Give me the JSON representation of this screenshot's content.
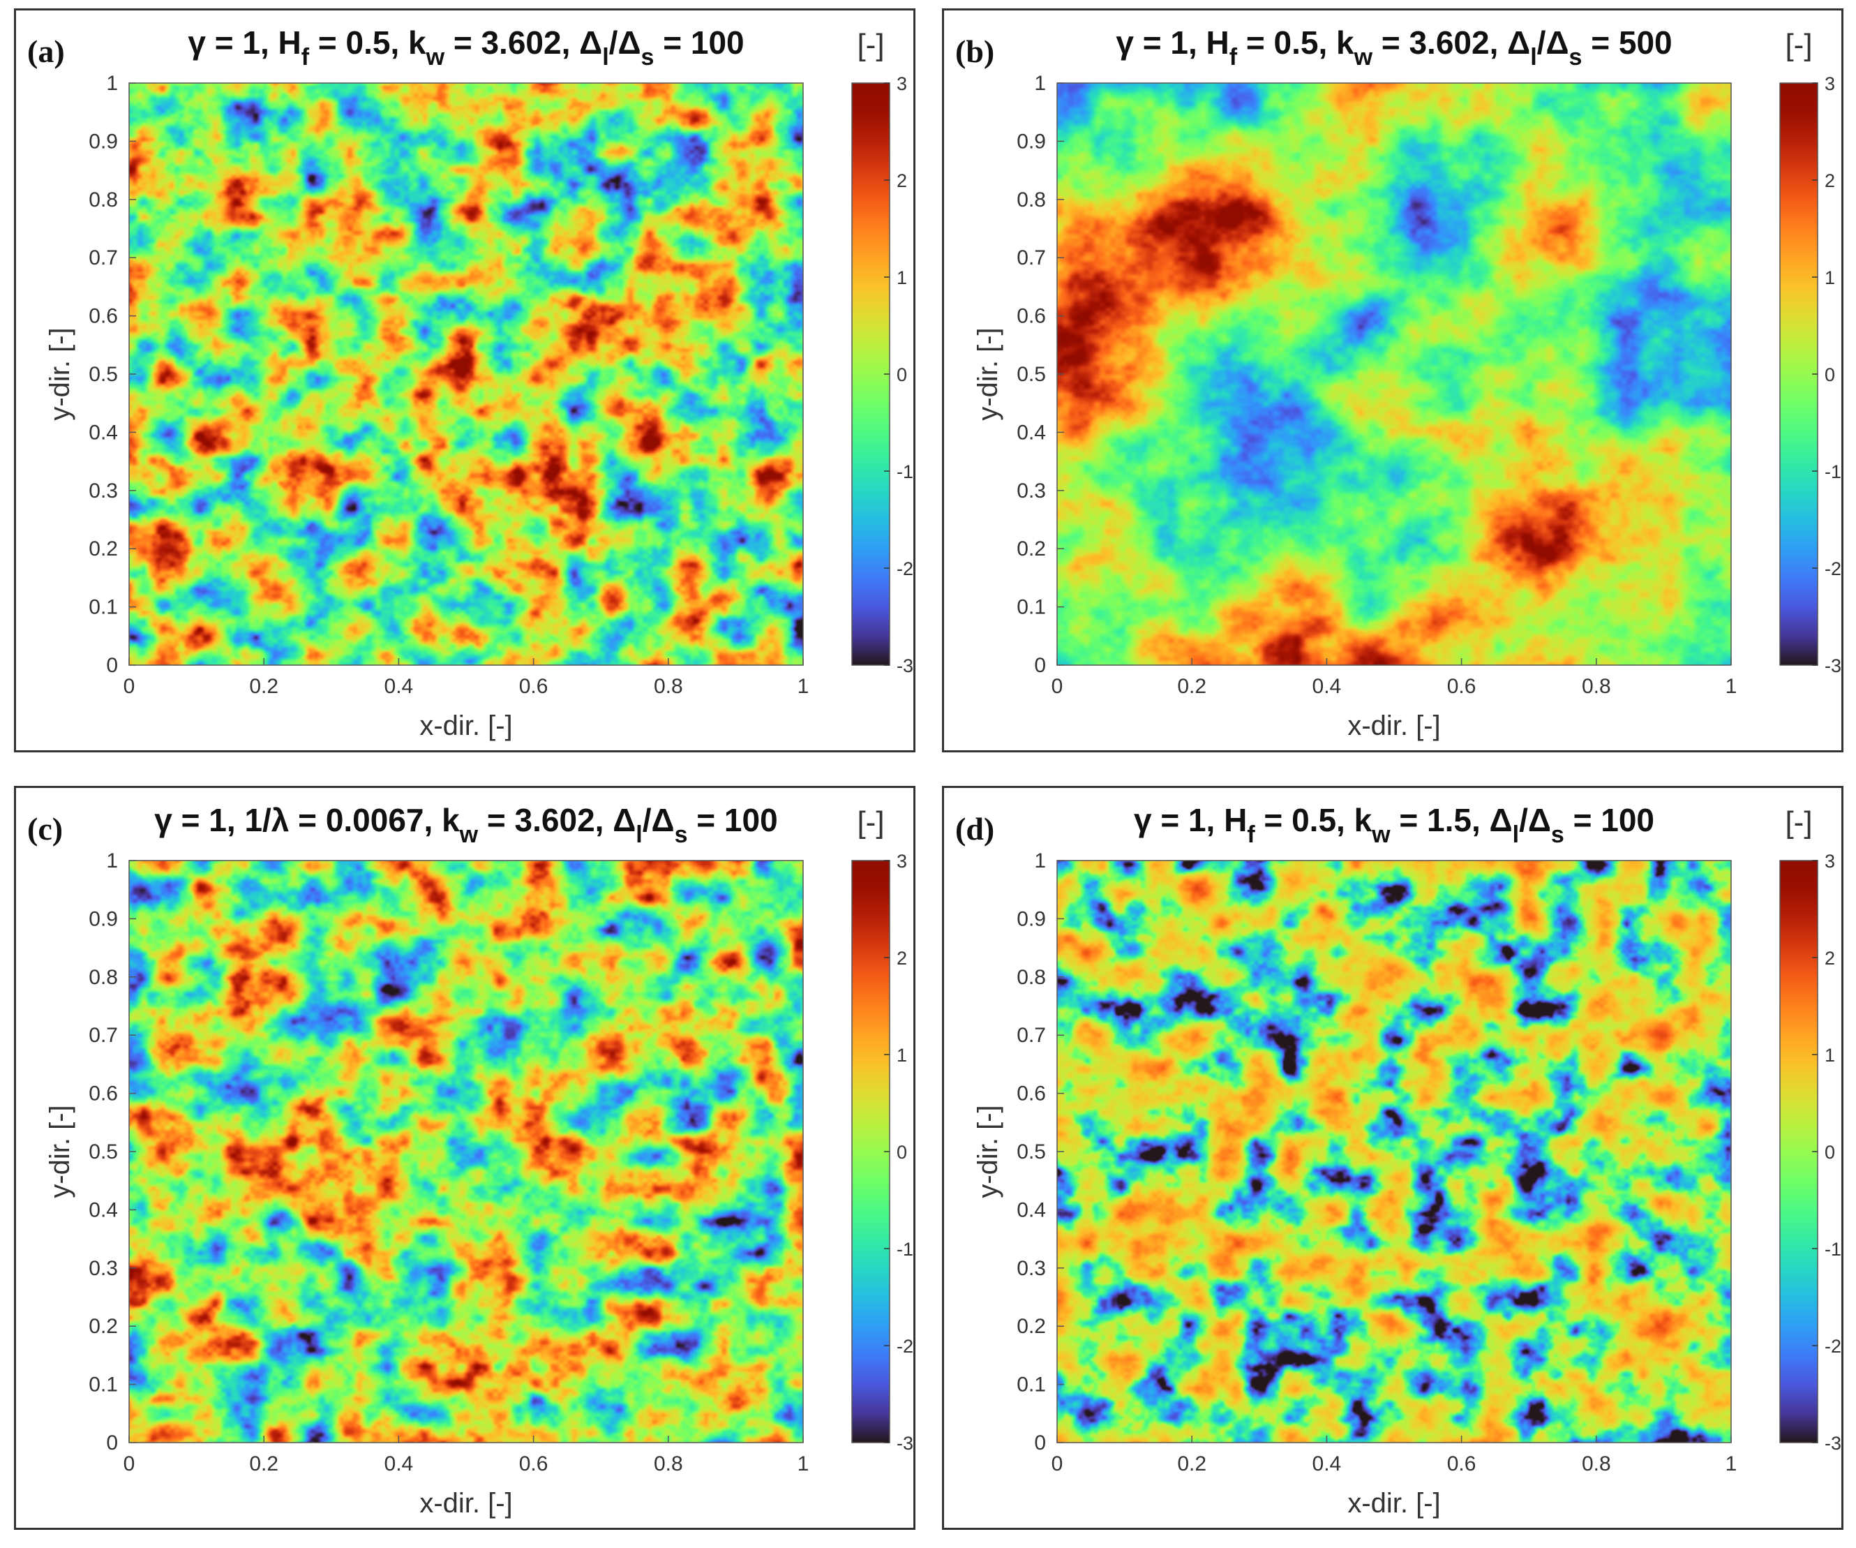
{
  "chart_data": [
    {
      "type": "heatmap",
      "panel_label": "(a)",
      "title": "γ = 1, Hf = 0.5, kw = 3.602, Δl/Δs = 100",
      "title_parts": [
        "γ = 1, H",
        "f",
        " = 0.5, k",
        "w",
        " = 3.602, Δ",
        "l",
        "/Δ",
        "s",
        " = 100"
      ],
      "xlabel": "x-dir. [-]",
      "ylabel": "y-dir. [-]",
      "xlim": [
        0,
        1
      ],
      "ylim": [
        0,
        1
      ],
      "x_ticks": [
        "0",
        "0.2",
        "0.4",
        "0.6",
        "0.8",
        "1"
      ],
      "y_ticks": [
        "0",
        "0.1",
        "0.2",
        "0.3",
        "0.4",
        "0.5",
        "0.6",
        "0.7",
        "0.8",
        "0.9",
        "1"
      ],
      "colorbar": {
        "label": "[-]",
        "range": [
          -3,
          3
        ],
        "ticks": [
          "-3",
          "-2",
          "-1",
          "0",
          "1",
          "2",
          "3"
        ],
        "colormap": "turbo"
      },
      "field_scale": "fine",
      "seed": 11
    },
    {
      "type": "heatmap",
      "panel_label": "(b)",
      "title": "γ = 1, Hf = 0.5, kw = 3.602, Δl/Δs = 500",
      "title_parts": [
        "γ = 1, H",
        "f",
        " = 0.5, k",
        "w",
        " = 3.602, Δ",
        "l",
        "/Δ",
        "s",
        " = 500"
      ],
      "xlabel": "x-dir. [-]",
      "ylabel": "y-dir. [-]",
      "xlim": [
        0,
        1
      ],
      "ylim": [
        0,
        1
      ],
      "x_ticks": [
        "0",
        "0.2",
        "0.4",
        "0.6",
        "0.8",
        "1"
      ],
      "y_ticks": [
        "0",
        "0.1",
        "0.2",
        "0.3",
        "0.4",
        "0.5",
        "0.6",
        "0.7",
        "0.8",
        "0.9",
        "1"
      ],
      "colorbar": {
        "label": "[-]",
        "range": [
          -3,
          3
        ],
        "ticks": [
          "-3",
          "-2",
          "-1",
          "0",
          "1",
          "2",
          "3"
        ],
        "colormap": "turbo"
      },
      "field_scale": "coarse",
      "seed": 23
    },
    {
      "type": "heatmap",
      "panel_label": "(c)",
      "title": "γ = 1, 1/λ = 0.0067, kw = 3.602, Δl/Δs = 100",
      "title_parts": [
        "γ = 1, 1/λ = 0.0067, k",
        "w",
        " = 3.602, Δ",
        "l",
        "/Δ",
        "s",
        " = 100"
      ],
      "xlabel": "x-dir. [-]",
      "ylabel": "y-dir. [-]",
      "xlim": [
        0,
        1
      ],
      "ylim": [
        0,
        1
      ],
      "x_ticks": [
        "0",
        "0.2",
        "0.4",
        "0.6",
        "0.8",
        "1"
      ],
      "y_ticks": [
        "0",
        "0.1",
        "0.2",
        "0.3",
        "0.4",
        "0.5",
        "0.6",
        "0.7",
        "0.8",
        "0.9",
        "1"
      ],
      "colorbar": {
        "label": "[-]",
        "range": [
          -3,
          3
        ],
        "ticks": [
          "-3",
          "-2",
          "-1",
          "0",
          "1",
          "2",
          "3"
        ],
        "colormap": "turbo"
      },
      "field_scale": "fine",
      "seed": 37
    },
    {
      "type": "heatmap",
      "panel_label": "(d)",
      "title": "γ = 1, Hf = 0.5, kw = 1.5, Δl/Δs = 100",
      "title_parts": [
        "γ = 1, H",
        "f",
        " = 0.5, k",
        "w",
        " = 1.5, Δ",
        "l",
        "/Δ",
        "s",
        " = 100"
      ],
      "xlabel": "x-dir. [-]",
      "ylabel": "y-dir. [-]",
      "xlim": [
        0,
        1
      ],
      "ylim": [
        0,
        1
      ],
      "x_ticks": [
        "0",
        "0.2",
        "0.4",
        "0.6",
        "0.8",
        "1"
      ],
      "y_ticks": [
        "0",
        "0.1",
        "0.2",
        "0.3",
        "0.4",
        "0.5",
        "0.6",
        "0.7",
        "0.8",
        "0.9",
        "1"
      ],
      "colorbar": {
        "label": "[-]",
        "range": [
          -3,
          3
        ],
        "ticks": [
          "-3",
          "-2",
          "-1",
          "0",
          "1",
          "2",
          "3"
        ],
        "colormap": "turbo"
      },
      "field_scale": "spotty",
      "seed": 53
    }
  ]
}
